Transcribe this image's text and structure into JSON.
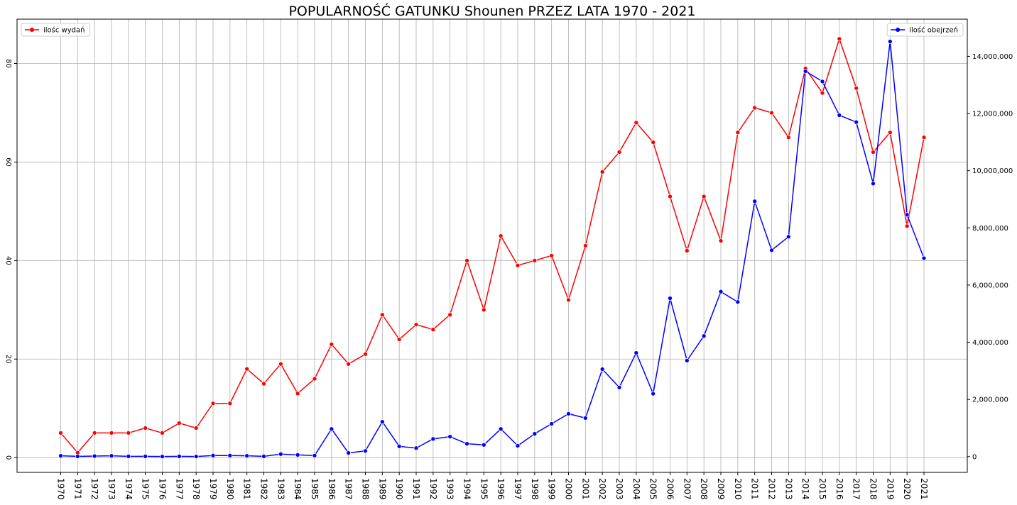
{
  "chart_data": {
    "type": "line",
    "title": "POPULARNOŚĆ GATUNKU Shounen PRZEZ LATA 1970 - 2021",
    "xlabel": "",
    "ylabel": "",
    "categories": [
      "1970",
      "1971",
      "1972",
      "1973",
      "1974",
      "1975",
      "1976",
      "1977",
      "1978",
      "1979",
      "1980",
      "1981",
      "1982",
      "1983",
      "1984",
      "1985",
      "1986",
      "1987",
      "1988",
      "1989",
      "1990",
      "1991",
      "1992",
      "1993",
      "1994",
      "1995",
      "1996",
      "1997",
      "1998",
      "1999",
      "2000",
      "2001",
      "2002",
      "2003",
      "2004",
      "2005",
      "2006",
      "2007",
      "2008",
      "2009",
      "2010",
      "2011",
      "2012",
      "2013",
      "2014",
      "2015",
      "2016",
      "2017",
      "2018",
      "2019",
      "2020",
      "2021"
    ],
    "series": [
      {
        "name": "ilośc wydań",
        "color": "#ff0000",
        "axis": "left",
        "values": [
          5,
          1,
          5,
          5,
          5,
          6,
          5,
          7,
          6,
          11,
          11,
          18,
          15,
          19,
          13,
          16,
          23,
          19,
          21,
          29,
          24,
          27,
          26,
          29,
          40,
          30,
          45,
          39,
          40,
          41,
          32,
          43,
          58,
          62,
          68,
          64,
          53,
          42,
          53,
          44,
          66,
          71,
          70,
          65,
          79,
          74,
          85,
          75,
          62,
          66,
          47,
          65
        ]
      },
      {
        "name": "ilość obejrzeń",
        "color": "#0000ff",
        "axis": "right",
        "values": [
          30000,
          10000,
          20000,
          30000,
          10000,
          10000,
          5000,
          10000,
          5000,
          40000,
          40000,
          30000,
          10000,
          90000,
          60000,
          40000,
          970000,
          130000,
          200000,
          1220000,
          360000,
          300000,
          620000,
          700000,
          450000,
          410000,
          970000,
          380000,
          800000,
          1150000,
          1500000,
          1350000,
          3060000,
          2420000,
          3630000,
          2200000,
          5540000,
          3360000,
          4220000,
          5770000,
          5410000,
          8930000,
          7220000,
          7690000,
          13480000,
          13120000,
          11940000,
          11700000,
          9550000,
          14520000,
          8460000,
          6940000
        ]
      }
    ],
    "left_axis": {
      "range": [
        -3,
        89
      ],
      "ticks": [
        0,
        20,
        40,
        60,
        80
      ]
    },
    "right_axis": {
      "range": [
        -550000,
        15300000
      ],
      "ticks": [
        0,
        2000000,
        4000000,
        6000000,
        8000000,
        10000000,
        12000000,
        14000000
      ],
      "tick_labels": [
        "0",
        "2,000,000",
        "4,000,000",
        "6,000,000",
        "8,000,000",
        "10,000,000",
        "12,000,000",
        "14,000,000"
      ]
    },
    "grid": true,
    "legend": [
      {
        "series": "ilośc wydań",
        "placement": "upper-left"
      },
      {
        "series": "ilość obejrzeń",
        "placement": "upper-right"
      }
    ]
  }
}
